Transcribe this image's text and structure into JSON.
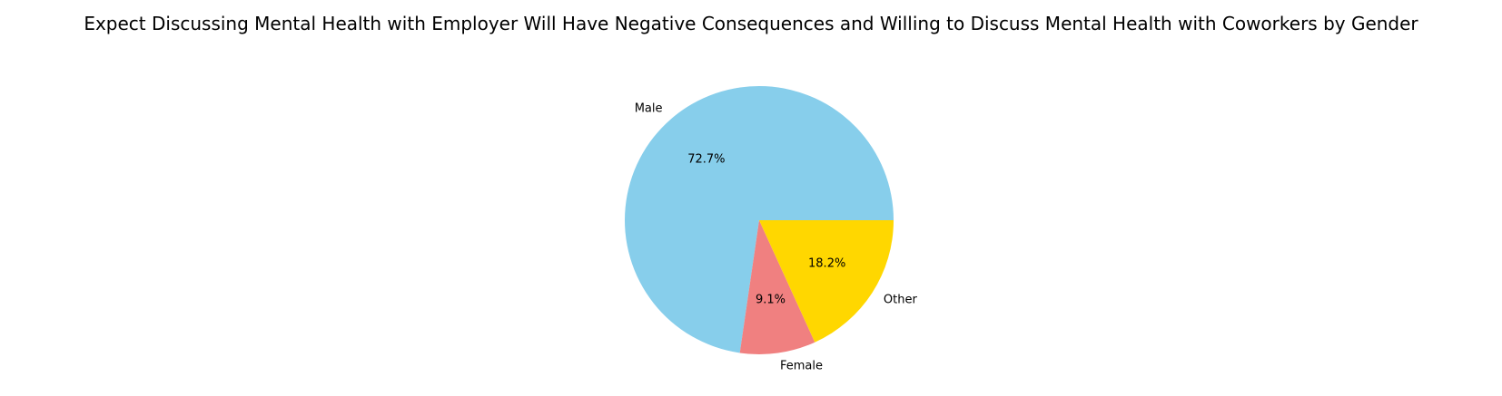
{
  "chart_data": {
    "type": "pie",
    "title": "Expect Discussing Mental Health with Employer Will Have Negative Consequences and Willing to Discuss Mental Health with Coworkers by Gender",
    "slices": [
      {
        "label": "Male",
        "value": 72.7,
        "pct_label": "72.7%",
        "color": "#87ceeb"
      },
      {
        "label": "Female",
        "value": 9.1,
        "pct_label": "9.1%",
        "color": "#f08080"
      },
      {
        "label": "Other",
        "value": 18.2,
        "pct_label": "18.2%",
        "color": "#ffd700"
      }
    ],
    "start_angle_deg": 0,
    "direction": "counterclockwise",
    "legend": "none"
  }
}
